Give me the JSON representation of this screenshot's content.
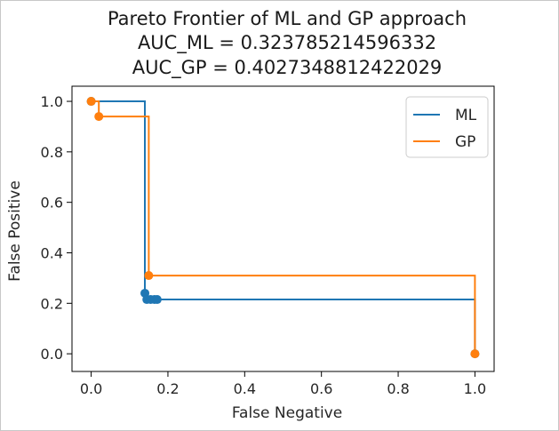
{
  "chart_data": {
    "type": "line",
    "title_lines": [
      "Pareto Frontier of ML and GP approach",
      "AUC_ML = 0.323785214596332",
      "AUC_GP = 0.4027348812422029"
    ],
    "xlabel": "False Negative",
    "ylabel": "False Positive",
    "xlim": [
      -0.05,
      1.05
    ],
    "ylim": [
      -0.07,
      1.06
    ],
    "xticks": [
      0.0,
      0.2,
      0.4,
      0.6,
      0.8,
      1.0
    ],
    "xtick_labels": [
      "0.0",
      "0.2",
      "0.4",
      "0.6",
      "0.8",
      "1.0"
    ],
    "yticks": [
      0.0,
      0.2,
      0.4,
      0.6,
      0.8,
      1.0
    ],
    "ytick_labels": [
      "0.0",
      "0.2",
      "0.4",
      "0.6",
      "0.8",
      "1.0"
    ],
    "grid": false,
    "legend_position": "upper-right",
    "series": [
      {
        "name": "ML",
        "color": "#1f77b4",
        "step_line": [
          [
            0.0,
            1.0
          ],
          [
            0.14,
            1.0
          ],
          [
            0.14,
            0.24
          ],
          [
            0.145,
            0.24
          ],
          [
            0.145,
            0.215
          ],
          [
            1.0,
            0.215
          ],
          [
            1.0,
            0.0
          ]
        ],
        "points": [
          [
            0.0,
            1.0
          ],
          [
            0.14,
            0.24
          ],
          [
            0.145,
            0.215
          ],
          [
            0.155,
            0.215
          ],
          [
            0.165,
            0.215
          ],
          [
            0.172,
            0.215
          ],
          [
            1.0,
            0.0
          ]
        ]
      },
      {
        "name": "GP",
        "color": "#ff7f0e",
        "step_line": [
          [
            0.0,
            1.0
          ],
          [
            0.02,
            1.0
          ],
          [
            0.02,
            0.94
          ],
          [
            0.15,
            0.94
          ],
          [
            0.15,
            0.31
          ],
          [
            1.0,
            0.31
          ],
          [
            1.0,
            0.0
          ]
        ],
        "points": [
          [
            0.0,
            1.0
          ],
          [
            0.02,
            0.94
          ],
          [
            0.15,
            0.31
          ],
          [
            1.0,
            0.0
          ]
        ]
      }
    ]
  }
}
